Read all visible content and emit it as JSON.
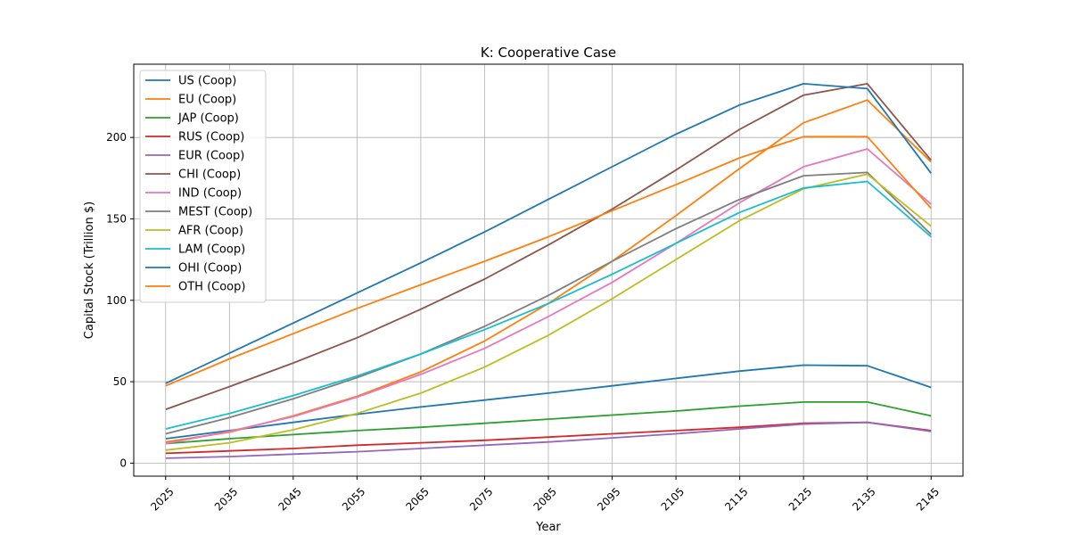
{
  "chart_data": {
    "type": "line",
    "title": "K: Cooperative Case",
    "xlabel": "Year",
    "ylabel": "Capital Stock (Trillion $)",
    "x": [
      2025,
      2035,
      2045,
      2055,
      2065,
      2075,
      2085,
      2095,
      2105,
      2115,
      2125,
      2135,
      2145
    ],
    "xlim": [
      2020,
      2150
    ],
    "ylim": [
      -8,
      245
    ],
    "yticks": [
      0,
      50,
      100,
      150,
      200
    ],
    "grid": true,
    "legend_position": "upper-left",
    "series": [
      {
        "name": "US (Coop)",
        "color": "#1f77b4",
        "values": [
          15,
          20,
          25,
          30,
          34.5,
          38.7,
          43,
          47.5,
          52,
          56.5,
          60.2,
          59.8,
          46.5
        ]
      },
      {
        "name": "EU (Coop)",
        "color": "#ff7f0e",
        "values": [
          13,
          19,
          29,
          41,
          56,
          75,
          98,
          124,
          152,
          181,
          209,
          223,
          185
        ]
      },
      {
        "name": "JAP (Coop)",
        "color": "#2ca02c",
        "values": [
          12,
          15,
          17.5,
          20,
          22,
          24.5,
          27,
          29.5,
          32,
          35,
          37.5,
          37.5,
          29
        ]
      },
      {
        "name": "RUS (Coop)",
        "color": "#d62728",
        "values": [
          6,
          7.5,
          9,
          11,
          12.5,
          14,
          16,
          18,
          20,
          22,
          24.5,
          25,
          20
        ]
      },
      {
        "name": "EUR (Coop)",
        "color": "#9467bd",
        "values": [
          3,
          4,
          5.5,
          7,
          9,
          11,
          13,
          15.5,
          18,
          21,
          24,
          25,
          19.5
        ]
      },
      {
        "name": "CHI (Coop)",
        "color": "#8c564b",
        "values": [
          33,
          47,
          61.5,
          77,
          94.5,
          113,
          134,
          156,
          180,
          205,
          226,
          233,
          186
        ]
      },
      {
        "name": "IND (Coop)",
        "color": "#e377c2",
        "values": [
          12,
          19.5,
          28.5,
          40.5,
          54.5,
          70.5,
          90,
          111,
          135,
          160,
          182,
          193,
          159
        ]
      },
      {
        "name": "MEST (Coop)",
        "color": "#7f7f7f",
        "values": [
          18,
          28,
          39.5,
          52.5,
          67,
          84,
          103,
          124,
          144,
          162,
          176.5,
          178.5,
          140.5
        ]
      },
      {
        "name": "AFR (Coop)",
        "color": "#bcbd22",
        "values": [
          8,
          12.5,
          20.5,
          30.5,
          43,
          59,
          78.5,
          101,
          125,
          149,
          168.5,
          177.5,
          145.5
        ]
      },
      {
        "name": "LAM (Coop)",
        "color": "#17becf",
        "values": [
          21,
          30.5,
          41.5,
          53.5,
          67,
          82,
          98,
          116,
          135,
          154,
          169,
          173,
          139
        ]
      },
      {
        "name": "OHI (Coop)",
        "color": "#1f77b4",
        "values": [
          49,
          67.5,
          86,
          104.5,
          123,
          142,
          162,
          182,
          202,
          220,
          233,
          230,
          178
        ]
      },
      {
        "name": "OTH (Coop)",
        "color": "#ff7f0e",
        "values": [
          47.5,
          64,
          79.5,
          95,
          109.5,
          124,
          139,
          155,
          171,
          187.5,
          200.5,
          200.5,
          156.5
        ]
      }
    ]
  }
}
